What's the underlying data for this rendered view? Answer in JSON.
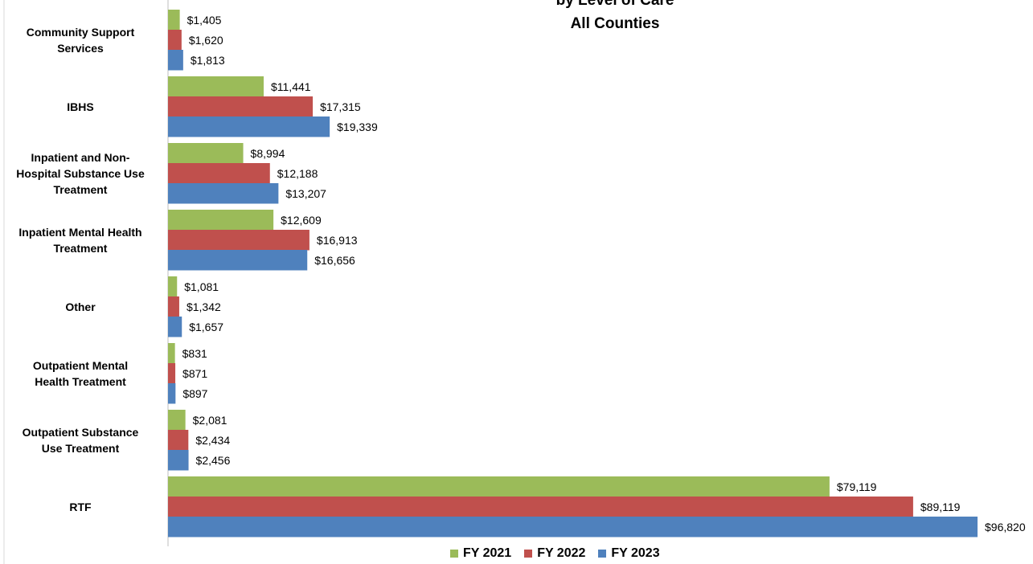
{
  "chart_data": {
    "type": "bar",
    "orientation": "horizontal",
    "title_line1": "by Level of Care",
    "title_line2": "All Counties",
    "categories": [
      "Community Support Services",
      "IBHS",
      "Inpatient and Non-Hospital Substance Use Treatment",
      "Inpatient Mental Health Treatment",
      "Other",
      "Outpatient Mental Health Treatment",
      "Outpatient Substance Use Treatment",
      "RTF"
    ],
    "category_label_lines": [
      [
        "Community Support",
        "Services"
      ],
      [
        "IBHS"
      ],
      [
        "Inpatient and Non-",
        "Hospital Substance Use",
        "Treatment"
      ],
      [
        "Inpatient Mental Health",
        "Treatment"
      ],
      [
        "Other"
      ],
      [
        "Outpatient Mental",
        "Health Treatment"
      ],
      [
        "Outpatient Substance",
        "Use Treatment"
      ],
      [
        "RTF"
      ]
    ],
    "series": [
      {
        "name": "FY 2021",
        "color": "#9BBB59",
        "values": [
          1405,
          11441,
          8994,
          12609,
          1081,
          831,
          2081,
          79119
        ],
        "labels": [
          "$1,405",
          "$11,441",
          "$8,994",
          "$12,609",
          "$1,081",
          "$831",
          "$2,081",
          "$79,119"
        ]
      },
      {
        "name": "FY 2022",
        "color": "#C0504D",
        "values": [
          1620,
          17315,
          12188,
          16913,
          1342,
          871,
          2434,
          89119
        ],
        "labels": [
          "$1,620",
          "$17,315",
          "$12,188",
          "$16,913",
          "$1,342",
          "$871",
          "$2,434",
          "$89,119"
        ]
      },
      {
        "name": "FY 2023",
        "color": "#4F81BD",
        "values": [
          1813,
          19339,
          13207,
          16656,
          1657,
          897,
          2456,
          96820
        ],
        "labels": [
          "$1,813",
          "$19,339",
          "$13,207",
          "$16,656",
          "$1,657",
          "$897",
          "$2,456",
          "$96,820"
        ]
      }
    ],
    "xlim": [
      0,
      96820
    ],
    "grid": false,
    "legend_position": "bottom"
  }
}
